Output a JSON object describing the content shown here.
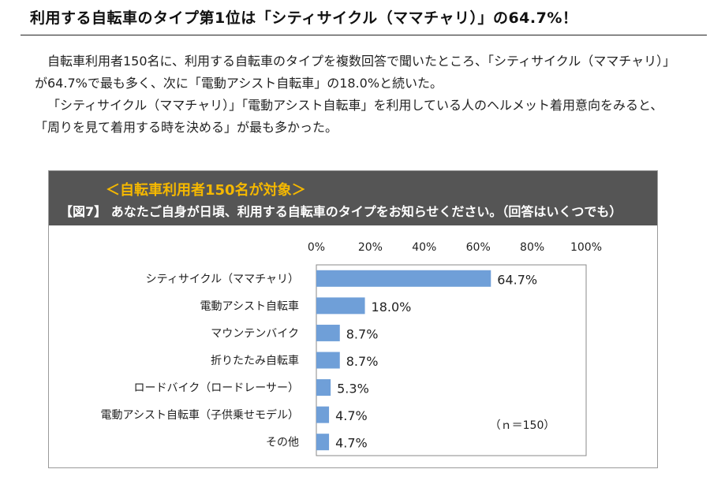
{
  "headline": "利用する自転車のタイプ第1位は「シティサイクル（ママチャリ）」の64.7%！",
  "paragraphs": [
    "自転車利用者150名に、利用する自転車のタイプを複数回答で聞いたところ、「シティサイクル（ママチャリ）」が64.7%で最も多く、次に「電動アシスト自転車」の18.0%と続いた。",
    "「シティサイクル（ママチャリ）」「電動アシスト自転車」を利用している人のヘルメット着用意向をみると、「周りを見て着用する時を決める」が最も多かった。"
  ],
  "figure": {
    "target": "＜自転車利用者150名が対象＞",
    "question": "【図7】 あなたご自身が日頃、利用する自転車のタイプをお知らせください。（回答はいくつでも）"
  },
  "colors": {
    "bar": "#6f9fd8",
    "header_bg": "#555555",
    "target_text": "#f5b800"
  },
  "chart_data": {
    "type": "bar",
    "orientation": "horizontal",
    "categories": [
      "シティサイクル（ママチャリ）",
      "電動アシスト自転車",
      "マウンテンバイク",
      "折りたたみ自転車",
      "ロードバイク（ロードレーサー）",
      "電動アシスト自転車（子供乗せモデル）",
      "その他"
    ],
    "values": [
      64.7,
      18.0,
      8.7,
      8.7,
      5.3,
      4.7,
      4.7
    ],
    "value_labels": [
      "64.7%",
      "18.0%",
      "8.7%",
      "8.7%",
      "5.3%",
      "4.7%",
      "4.7%"
    ],
    "xlim": [
      0,
      100
    ],
    "ticks": [
      0,
      20,
      40,
      60,
      80,
      100
    ],
    "tick_labels": [
      "0%",
      "20%",
      "40%",
      "60%",
      "80%",
      "100%"
    ],
    "axis_position": "top",
    "note": "（ｎ＝150）",
    "grid": false
  }
}
